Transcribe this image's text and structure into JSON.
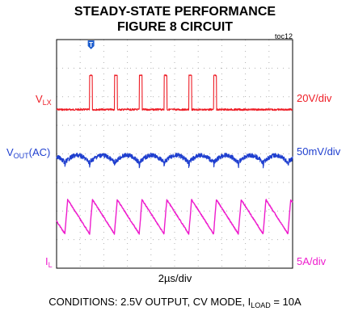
{
  "title_line1": "STEADY-STATE PERFORMANCE",
  "title_line2": "FIGURE 8 CIRCUIT",
  "toc_label": "toc12",
  "channels": [
    {
      "name_main": "V",
      "name_sub": "LX",
      "name_suffix": "",
      "scale": "20V/div",
      "color": "#ee1c25"
    },
    {
      "name_main": "V",
      "name_sub": "OUT",
      "name_suffix": "(AC)",
      "scale": "50mV/div",
      "color": "#1f3fcf"
    },
    {
      "name_main": "I",
      "name_sub": "L",
      "name_suffix": "",
      "scale": "5A/div",
      "color": "#ee1ccd"
    }
  ],
  "time_scale": "2µs/div",
  "conditions_prefix": "CONDITIONS: 2.5V OUTPUT, CV MODE, I",
  "conditions_sub": "LOAD",
  "conditions_suffix": " = 10A",
  "trigger_marker_label": "T",
  "chart_data": {
    "type": "line",
    "x_divisions": 10,
    "y_divisions": 8,
    "switching_period_div": 1.05,
    "pulse_positions_div": [
      1.4,
      2.45,
      3.5,
      4.55,
      5.6,
      6.65
    ],
    "series": [
      {
        "name": "VLX",
        "scale": "20V/div",
        "baseline_div": 2.45,
        "pulse_height_div": 1.2,
        "pulse_width_div": 0.12
      },
      {
        "name": "VOUT(AC)",
        "scale": "50mV/div",
        "baseline_div": 4.2,
        "ripple_pp_div": 0.55
      },
      {
        "name": "IL",
        "scale": "5A/div",
        "baseline_div": 6.2,
        "ripple_pp_div": 1.2
      }
    ]
  }
}
